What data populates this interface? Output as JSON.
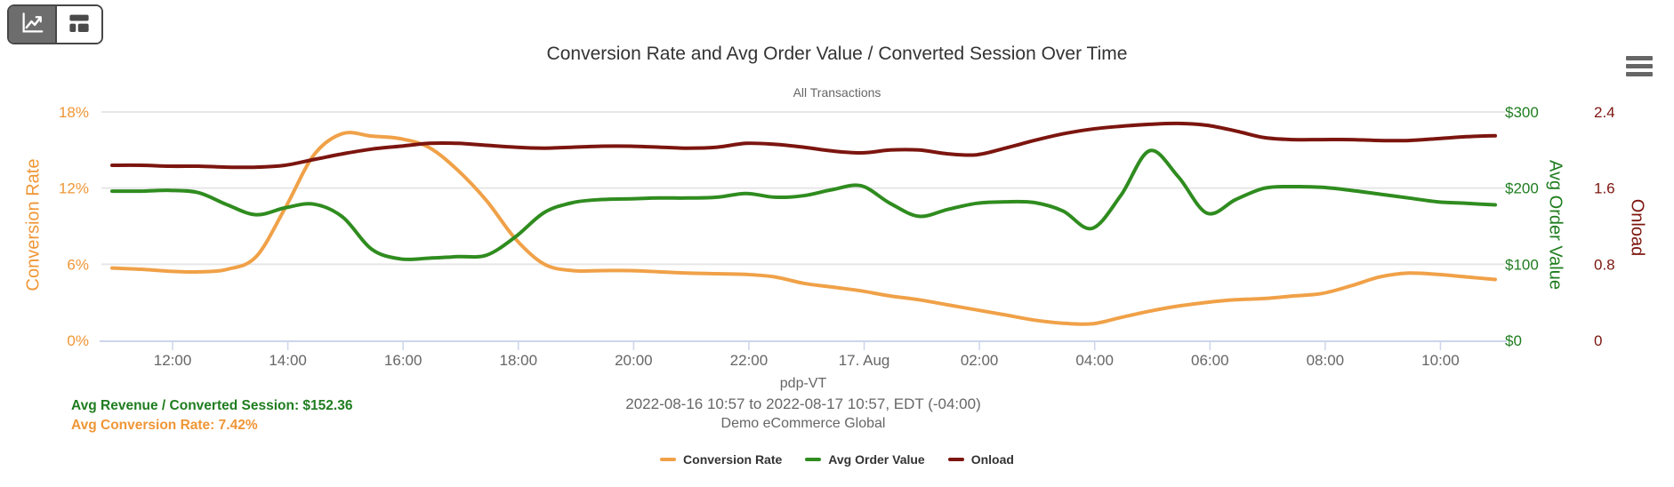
{
  "view_toggle": {
    "chart_button_icon": "line-chart-icon",
    "dashboard_button_icon": "dashboard-layout-icon"
  },
  "context_menu_icon": "hamburger-menu-icon",
  "header": {
    "title": "Conversion Rate and Avg Order Value / Converted Session Over Time",
    "subtitle": "All Transactions"
  },
  "summary": {
    "avg_revenue": "Avg Revenue / Converted Session: $152.36",
    "avg_conversion": "Avg Conversion Rate: 7.42%"
  },
  "chart_data": {
    "type": "line",
    "title": "Conversion Rate and Avg Order Value / Converted Session Over Time",
    "subtitle": "All Transactions",
    "grid": true,
    "legend_position": "bottom",
    "x_axis": {
      "title_lines": [
        "pdp-VT",
        "2022-08-16 10:57 to 2022-08-17 10:57, EDT (-04:00)",
        "Demo eCommerce Global"
      ],
      "tick_labels": [
        "12:00",
        "14:00",
        "16:00",
        "18:00",
        "20:00",
        "22:00",
        "17. Aug",
        "02:00",
        "04:00",
        "06:00",
        "08:00",
        "10:00"
      ],
      "range_hours": [
        0,
        24
      ]
    },
    "y_axes": [
      {
        "id": "conversion",
        "title": "Conversion Rate",
        "color": "#EF9636",
        "tick_labels": [
          "0%",
          "6%",
          "12%",
          "18%"
        ],
        "min": 0,
        "max": 18,
        "side": "left"
      },
      {
        "id": "aov",
        "title": "Avg Order Value",
        "color": "#1F7D1F",
        "tick_labels": [
          "$0",
          "$100",
          "$200",
          "$300"
        ],
        "min": 0,
        "max": 300,
        "side": "right"
      },
      {
        "id": "onload",
        "title": "Onload",
        "color": "#7C150F",
        "tick_labels": [
          "0",
          "0.8",
          "1.6",
          "2.4"
        ],
        "min": 0,
        "max": 2.4,
        "side": "right"
      }
    ],
    "x_hours": [
      0,
      0.5,
      1,
      1.5,
      2,
      2.5,
      3,
      3.5,
      4,
      4.5,
      5,
      5.5,
      6,
      6.5,
      7,
      7.5,
      8,
      8.5,
      9,
      9.5,
      10,
      10.5,
      11,
      11.5,
      12,
      12.5,
      13,
      13.5,
      14,
      14.5,
      15,
      15.5,
      16,
      16.5,
      17,
      17.5,
      18,
      18.5,
      19,
      19.5,
      20,
      20.5,
      21,
      21.5,
      22,
      22.5,
      23,
      23.5,
      24
    ],
    "series": [
      {
        "name": "Conversion Rate",
        "axis": "conversion",
        "color": "#F0A148",
        "values": [
          5.7,
          5.6,
          5.45,
          5.4,
          5.6,
          6.6,
          10.4,
          14.6,
          16.3,
          16.1,
          15.9,
          15.2,
          13.4,
          11.0,
          8.0,
          6.0,
          5.5,
          5.5,
          5.5,
          5.4,
          5.3,
          5.25,
          5.2,
          5.0,
          4.5,
          4.2,
          3.9,
          3.5,
          3.2,
          2.8,
          2.4,
          2.0,
          1.6,
          1.35,
          1.3,
          1.8,
          2.3,
          2.7,
          3.0,
          3.2,
          3.3,
          3.5,
          3.7,
          4.3,
          5.0,
          5.3,
          5.2,
          5.0,
          4.8
        ]
      },
      {
        "name": "Avg Order Value",
        "axis": "aov",
        "color": "#2F8C1F",
        "values": [
          196,
          196,
          197,
          194,
          178,
          165,
          174,
          179,
          162,
          120,
          107,
          108,
          110,
          112,
          136,
          168,
          181,
          185,
          186,
          187,
          187,
          188,
          193,
          188,
          190,
          198,
          203,
          180,
          163,
          172,
          180,
          182,
          181,
          170,
          147,
          190,
          249,
          215,
          167,
          185,
          200,
          202,
          201,
          197,
          192,
          187,
          182,
          180,
          178
        ]
      },
      {
        "name": "Onload",
        "axis": "onload",
        "color": "#7C150F",
        "values": [
          1.84,
          1.84,
          1.83,
          1.83,
          1.82,
          1.82,
          1.84,
          1.9,
          1.96,
          2.01,
          2.04,
          2.07,
          2.07,
          2.05,
          2.03,
          2.02,
          2.03,
          2.04,
          2.04,
          2.03,
          2.02,
          2.03,
          2.07,
          2.06,
          2.03,
          1.99,
          1.97,
          2.0,
          2.0,
          1.96,
          1.95,
          2.02,
          2.1,
          2.17,
          2.22,
          2.25,
          2.27,
          2.28,
          2.26,
          2.2,
          2.13,
          2.11,
          2.11,
          2.11,
          2.1,
          2.1,
          2.12,
          2.14,
          2.15
        ]
      }
    ]
  }
}
